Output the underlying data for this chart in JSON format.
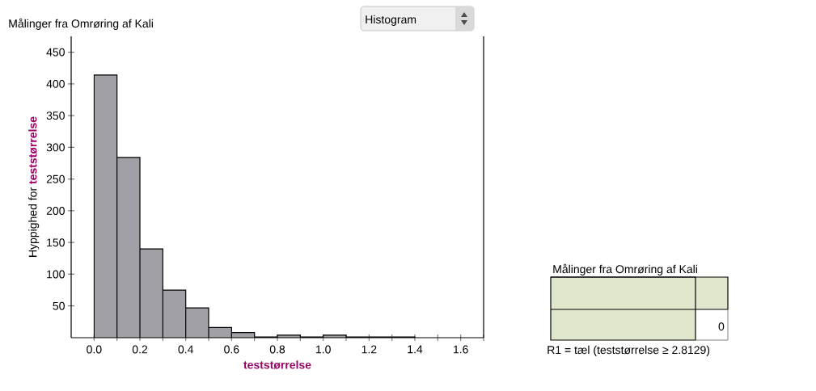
{
  "chart_data": {
    "type": "histogram",
    "title": "Målinger fra Omrøring af Kali",
    "xlabel": "teststørrelse",
    "ylabel": "Hyppighed for **teststørrelse**",
    "bins": [
      0,
      0.1,
      0.2,
      0.3,
      0.4,
      0.5,
      0.6,
      0.7,
      0.8,
      0.9,
      1.0,
      1.1,
      1.2,
      1.3,
      1.4
    ],
    "values": [
      414,
      284,
      140,
      75,
      47,
      16,
      8,
      1,
      4,
      1,
      4,
      1,
      1,
      1
    ],
    "color": "#a1a0a6",
    "xlim": [
      -0.1,
      1.7
    ],
    "xticks": [
      {
        "value": 0,
        "label": "0.0"
      },
      {
        "value": 0.1,
        "label": null
      },
      {
        "value": 0.2,
        "label": "0.2"
      },
      {
        "value": 0.3,
        "label": null
      },
      {
        "value": 0.4,
        "label": "0.4"
      },
      {
        "value": 0.5,
        "label": null
      },
      {
        "value": 0.6,
        "label": "0.6"
      },
      {
        "value": 0.7,
        "label": null
      },
      {
        "value": 0.8,
        "label": "0.8"
      },
      {
        "value": 0.9,
        "label": null
      },
      {
        "value": 1.0,
        "label": "1.0"
      },
      {
        "value": 1.1,
        "label": null
      },
      {
        "value": 1.2,
        "label": "1.2"
      },
      {
        "value": 1.3,
        "label": null
      },
      {
        "value": 1.4,
        "label": "1.4"
      },
      {
        "value": 1.5,
        "label": null
      },
      {
        "value": 1.6,
        "label": "1.6"
      },
      {
        "value": 1.7,
        "label": null
      }
    ],
    "ylim": [
      0,
      475
    ],
    "yticks": [
      50,
      100,
      150,
      200,
      250,
      300,
      350,
      400,
      450
    ],
    "annotations": [
      "Histogram",
      "Målinger fra Omrøring af Kali",
      "0",
      "R1 = tæl (teststørrelse ≥ 2.8129)"
    ]
  }
}
